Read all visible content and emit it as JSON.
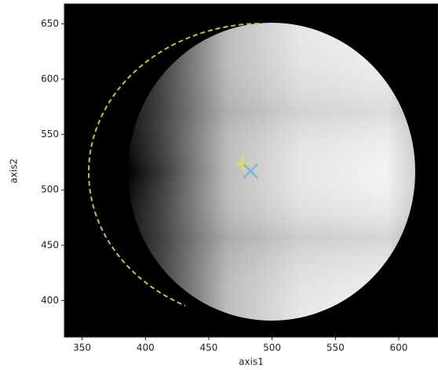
{
  "chart_data": {
    "type": "scatter",
    "xlabel": "axis1",
    "ylabel": "axis2",
    "xlim": [
      336,
      631
    ],
    "ylim": [
      367,
      668
    ],
    "xticks": [
      350,
      400,
      450,
      500,
      550,
      600
    ],
    "yticks": [
      400,
      450,
      500,
      550,
      600,
      650
    ],
    "grid": false,
    "series": [
      {
        "marker": "+",
        "color": "#e8e040",
        "x": [
          477
        ],
        "values": [
          523
        ]
      },
      {
        "marker": "x",
        "color": "#7ab8e0",
        "x": [
          483
        ],
        "values": [
          517
        ]
      }
    ]
  }
}
